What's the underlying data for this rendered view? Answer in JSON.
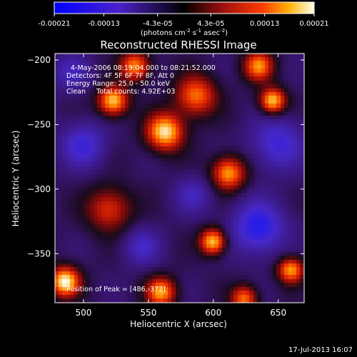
{
  "colorbar": {
    "ticks": [
      "-0.00021",
      "-0.00013",
      "-4.3e-05",
      "4.3e-05",
      "0.00013",
      "0.00021"
    ],
    "tick_values": [
      -0.00021,
      -0.00013,
      -4.3e-05,
      4.3e-05,
      0.00013,
      0.00021
    ],
    "range": [
      -0.00021,
      0.00021
    ],
    "units_prefix": "(photons cm",
    "units_exp1": "-2",
    "units_mid": " s",
    "units_exp2": "-1",
    "units_mid2": " asec",
    "units_exp3": "-2",
    "units_suffix": ")"
  },
  "chart_data": {
    "type": "heatmap",
    "title": "Reconstructed RHESSI Image",
    "xlabel": "Heliocentric X (arcsec)",
    "ylabel": "Heliocentric Y (arcsec)",
    "xlim": [
      478,
      670
    ],
    "ylim": [
      -388,
      -195
    ],
    "x_ticks": [
      500,
      550,
      600,
      650
    ],
    "y_ticks": [
      -200,
      -250,
      -300,
      -350
    ],
    "annotations": [
      "4-May-2006 08:19:04.000 to 08:21:52.000",
      "Detectors: 4F 5F 6F 7F 8F, Att 0",
      "Energy Range: 25.0 - 50.0 keV",
      "Clean     Total counts: 4.92E+03"
    ],
    "peak_label": "Position of Peak = [486,-372]",
    "peak": [
      486,
      -372
    ],
    "sources": [
      {
        "x": 486,
        "y": -372,
        "amp": 1.0,
        "sigma": 8
      },
      {
        "x": 563,
        "y": -256,
        "amp": 0.95,
        "sigma": 10
      },
      {
        "x": 523,
        "y": -232,
        "amp": 0.9,
        "sigma": 8
      },
      {
        "x": 646,
        "y": -232,
        "amp": 0.9,
        "sigma": 7
      },
      {
        "x": 612,
        "y": -288,
        "amp": 0.8,
        "sigma": 9
      },
      {
        "x": 600,
        "y": -341,
        "amp": 0.9,
        "sigma": 7
      },
      {
        "x": 660,
        "y": -363,
        "amp": 0.8,
        "sigma": 7
      },
      {
        "x": 520,
        "y": -316,
        "amp": 0.55,
        "sigma": 12
      },
      {
        "x": 560,
        "y": -380,
        "amp": 0.8,
        "sigma": 8
      },
      {
        "x": 587,
        "y": -228,
        "amp": 0.7,
        "sigma": 11
      },
      {
        "x": 540,
        "y": -205,
        "amp": 0.75,
        "sigma": 8
      },
      {
        "x": 635,
        "y": -205,
        "amp": 0.75,
        "sigma": 8
      },
      {
        "x": 624,
        "y": -385,
        "amp": 0.7,
        "sigma": 7
      },
      {
        "x": 635,
        "y": -330,
        "amp": -0.6,
        "sigma": 14
      },
      {
        "x": 650,
        "y": -265,
        "amp": -0.45,
        "sigma": 14
      },
      {
        "x": 500,
        "y": -266,
        "amp": -0.45,
        "sigma": 12
      },
      {
        "x": 585,
        "y": -305,
        "amp": -0.3,
        "sigma": 10
      },
      {
        "x": 545,
        "y": -345,
        "amp": -0.35,
        "sigma": 10
      },
      {
        "x": 490,
        "y": -210,
        "amp": -0.3,
        "sigma": 10
      }
    ]
  },
  "footer": {
    "timestamp": "17-Jul-2013 16:07"
  }
}
